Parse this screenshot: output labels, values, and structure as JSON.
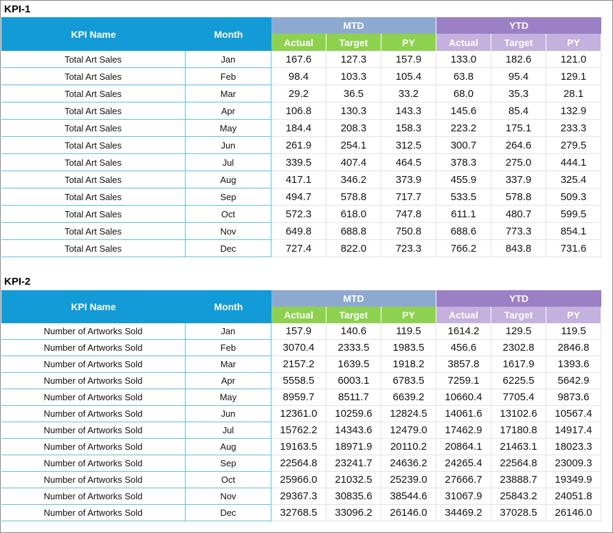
{
  "kpi1": {
    "title": "KPI-1",
    "headers": {
      "kpi_name": "KPI Name",
      "month": "Month",
      "mtd": "MTD",
      "ytd": "YTD",
      "sub": [
        "Actual",
        "Target",
        "PY",
        "Actual",
        "Target",
        "PY"
      ]
    },
    "rows": [
      [
        "Total Art Sales",
        "Jan",
        "167.6",
        "127.3",
        "157.9",
        "133.0",
        "182.6",
        "121.0"
      ],
      [
        "Total Art Sales",
        "Feb",
        "98.4",
        "103.3",
        "105.4",
        "63.8",
        "95.4",
        "129.1"
      ],
      [
        "Total Art Sales",
        "Mar",
        "29.2",
        "36.5",
        "33.2",
        "68.0",
        "35.3",
        "28.1"
      ],
      [
        "Total Art Sales",
        "Apr",
        "106.8",
        "130.3",
        "143.3",
        "145.6",
        "85.4",
        "132.9"
      ],
      [
        "Total Art Sales",
        "May",
        "184.4",
        "208.3",
        "158.3",
        "223.2",
        "175.1",
        "233.3"
      ],
      [
        "Total Art Sales",
        "Jun",
        "261.9",
        "254.1",
        "312.5",
        "300.7",
        "264.6",
        "279.5"
      ],
      [
        "Total Art Sales",
        "Jul",
        "339.5",
        "407.4",
        "464.5",
        "378.3",
        "275.0",
        "444.1"
      ],
      [
        "Total Art Sales",
        "Aug",
        "417.1",
        "346.2",
        "373.9",
        "455.9",
        "337.9",
        "325.4"
      ],
      [
        "Total Art Sales",
        "Sep",
        "494.7",
        "578.8",
        "717.7",
        "533.5",
        "578.8",
        "509.3"
      ],
      [
        "Total Art Sales",
        "Oct",
        "572.3",
        "618.0",
        "747.8",
        "611.1",
        "480.7",
        "599.5"
      ],
      [
        "Total Art Sales",
        "Nov",
        "649.8",
        "688.8",
        "750.8",
        "688.6",
        "773.3",
        "854.1"
      ],
      [
        "Total Art Sales",
        "Dec",
        "727.4",
        "822.0",
        "723.3",
        "766.2",
        "843.8",
        "731.6"
      ]
    ]
  },
  "kpi2": {
    "title": "KPI-2",
    "headers": {
      "kpi_name": "KPI Name",
      "month": "Month",
      "mtd": "MTD",
      "ytd": "YTD",
      "sub": [
        "Actual",
        "Target",
        "PY",
        "Actual",
        "Target",
        "PY"
      ]
    },
    "rows": [
      [
        "Number of Artworks Sold",
        "Jan",
        "157.9",
        "140.6",
        "119.5",
        "1614.2",
        "129.5",
        "119.5"
      ],
      [
        "Number of Artworks Sold",
        "Feb",
        "3070.4",
        "2333.5",
        "1983.5",
        "456.6",
        "2302.8",
        "2846.8"
      ],
      [
        "Number of Artworks Sold",
        "Mar",
        "2157.2",
        "1639.5",
        "1918.2",
        "3857.8",
        "1617.9",
        "1393.6"
      ],
      [
        "Number of Artworks Sold",
        "Apr",
        "5558.5",
        "6003.1",
        "6783.5",
        "7259.1",
        "6225.5",
        "5642.9"
      ],
      [
        "Number of Artworks Sold",
        "May",
        "8959.7",
        "8511.7",
        "6639.2",
        "10660.4",
        "7705.4",
        "9873.6"
      ],
      [
        "Number of Artworks Sold",
        "Jun",
        "12361.0",
        "10259.6",
        "12824.5",
        "14061.6",
        "13102.6",
        "10567.4"
      ],
      [
        "Number of Artworks Sold",
        "Jul",
        "15762.2",
        "14343.6",
        "12479.0",
        "17462.9",
        "17180.8",
        "14917.4"
      ],
      [
        "Number of Artworks Sold",
        "Aug",
        "19163.5",
        "18971.9",
        "20110.2",
        "20864.1",
        "21463.1",
        "18023.3"
      ],
      [
        "Number of Artworks Sold",
        "Sep",
        "22564.8",
        "23241.7",
        "24636.2",
        "24265.4",
        "22564.8",
        "23009.3"
      ],
      [
        "Number of Artworks Sold",
        "Oct",
        "25966.0",
        "21032.5",
        "25239.0",
        "27666.7",
        "23888.7",
        "19349.9"
      ],
      [
        "Number of Artworks Sold",
        "Nov",
        "29367.3",
        "30835.6",
        "38544.6",
        "31067.9",
        "25843.2",
        "24051.8"
      ],
      [
        "Number of Artworks Sold",
        "Dec",
        "32768.5",
        "33096.2",
        "26146.0",
        "34469.2",
        "37028.5",
        "26146.0"
      ]
    ]
  }
}
